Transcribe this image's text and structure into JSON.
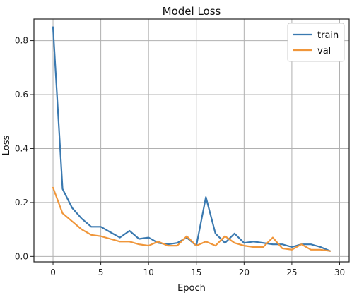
{
  "chart_data": {
    "type": "line",
    "title": "Model Loss",
    "xlabel": "Epoch",
    "ylabel": "Loss",
    "xlim": [
      -2,
      31
    ],
    "ylim": [
      -0.02,
      0.88
    ],
    "xticks": [
      0,
      5,
      10,
      15,
      20,
      25,
      30
    ],
    "yticks": [
      0.0,
      0.2,
      0.4,
      0.6,
      0.8
    ],
    "grid": true,
    "legend_position": "top-right",
    "x": [
      0,
      1,
      2,
      3,
      4,
      5,
      6,
      7,
      8,
      9,
      10,
      11,
      12,
      13,
      14,
      15,
      16,
      17,
      18,
      19,
      20,
      21,
      22,
      23,
      24,
      25,
      26,
      27,
      28,
      29
    ],
    "series": [
      {
        "name": "train",
        "color": "#3a79b0",
        "values": [
          0.85,
          0.25,
          0.18,
          0.14,
          0.11,
          0.11,
          0.09,
          0.07,
          0.095,
          0.065,
          0.07,
          0.05,
          0.045,
          0.05,
          0.07,
          0.04,
          0.22,
          0.085,
          0.05,
          0.085,
          0.05,
          0.055,
          0.05,
          0.045,
          0.045,
          0.035,
          0.045,
          0.045,
          0.035,
          0.02
        ]
      },
      {
        "name": "val",
        "color": "#f0963a",
        "values": [
          0.255,
          0.16,
          0.13,
          0.1,
          0.08,
          0.075,
          0.065,
          0.055,
          0.055,
          0.045,
          0.04,
          0.055,
          0.04,
          0.04,
          0.075,
          0.04,
          0.055,
          0.04,
          0.075,
          0.05,
          0.04,
          0.035,
          0.035,
          0.07,
          0.03,
          0.025,
          0.045,
          0.025,
          0.025,
          0.02
        ]
      }
    ],
    "axis_color": "#222222",
    "grid_color": "#b0b0b0"
  }
}
